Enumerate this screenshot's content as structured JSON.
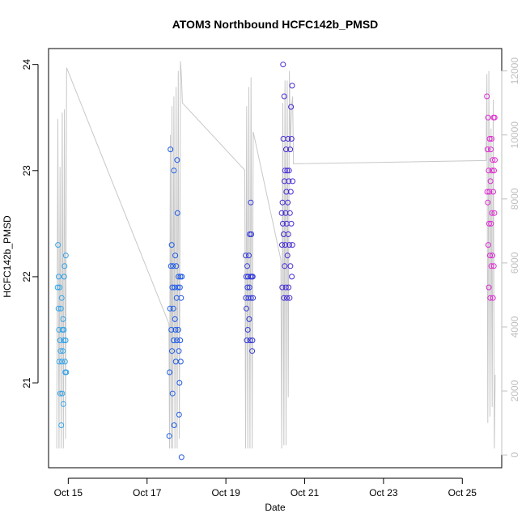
{
  "chart_data": {
    "type": "scatter",
    "title": "ATOM3 Northbound HCFC142b_PMSD",
    "xlabel": "Date",
    "ylabel": "HCFC142b_PMSD",
    "x_axis": {
      "range": [
        "2016-10-14T12:00",
        "2016-10-26T00:00"
      ],
      "ticks": [
        {
          "date": "2016-10-15",
          "label": "Oct 15"
        },
        {
          "date": "2016-10-17",
          "label": "Oct 17"
        },
        {
          "date": "2016-10-19",
          "label": "Oct 19"
        },
        {
          "date": "2016-10-21",
          "label": "Oct 21"
        },
        {
          "date": "2016-10-23",
          "label": "Oct 23"
        },
        {
          "date": "2016-10-25",
          "label": "Oct 25"
        }
      ]
    },
    "y_left": {
      "range": [
        20.2,
        24.15
      ],
      "ticks": [
        21,
        22,
        23,
        24
      ]
    },
    "y_right": {
      "range": [
        -400,
        12700
      ],
      "ticks": [
        0,
        2000,
        4000,
        6000,
        8000,
        10000,
        12000
      ],
      "color": "#bfbfbf"
    },
    "grid": false,
    "legend": "none",
    "colors": {
      "points_gradient": [
        "#33a6ea",
        "#1a5ee6",
        "#3b2ed4",
        "#9a1ad6",
        "#e02ad0"
      ],
      "altitude_line": "#c8c8c8"
    },
    "series": [
      {
        "role": "points",
        "points": [
          [
            "2016-10-14T17:30",
            21.9
          ],
          [
            "2016-10-14T17:45",
            22.3
          ],
          [
            "2016-10-14T18:00",
            21.7
          ],
          [
            "2016-10-14T18:10",
            22.0
          ],
          [
            "2016-10-14T18:20",
            21.5
          ],
          [
            "2016-10-14T18:30",
            21.2
          ],
          [
            "2016-10-14T18:45",
            21.9
          ],
          [
            "2016-10-14T19:00",
            21.4
          ],
          [
            "2016-10-14T19:10",
            20.9
          ],
          [
            "2016-10-14T19:20",
            21.3
          ],
          [
            "2016-10-14T19:30",
            21.7
          ],
          [
            "2016-10-14T19:45",
            20.6
          ],
          [
            "2016-10-14T20:00",
            21.8
          ],
          [
            "2016-10-14T20:10",
            21.2
          ],
          [
            "2016-10-14T20:20",
            20.9
          ],
          [
            "2016-10-14T20:30",
            21.5
          ],
          [
            "2016-10-14T20:40",
            21.3
          ],
          [
            "2016-10-14T20:50",
            21.6
          ],
          [
            "2016-10-14T21:00",
            20.8
          ],
          [
            "2016-10-14T21:10",
            21.4
          ],
          [
            "2016-10-14T21:20",
            21.5
          ],
          [
            "2016-10-14T21:30",
            22.0
          ],
          [
            "2016-10-14T21:45",
            22.1
          ],
          [
            "2016-10-14T22:00",
            21.2
          ],
          [
            "2016-10-14T22:10",
            21.1
          ],
          [
            "2016-10-14T22:20",
            21.4
          ],
          [
            "2016-10-14T22:30",
            22.2
          ],
          [
            "2016-10-14T22:45",
            21.1
          ],
          [
            "2016-10-17T13:30",
            20.5
          ],
          [
            "2016-10-17T13:45",
            21.1
          ],
          [
            "2016-10-17T14:00",
            21.7
          ],
          [
            "2016-10-17T14:15",
            23.2
          ],
          [
            "2016-10-17T14:30",
            22.1
          ],
          [
            "2016-10-17T14:45",
            21.5
          ],
          [
            "2016-10-17T15:00",
            22.3
          ],
          [
            "2016-10-17T15:10",
            21.3
          ],
          [
            "2016-10-17T15:20",
            21.9
          ],
          [
            "2016-10-17T15:30",
            20.9
          ],
          [
            "2016-10-17T15:45",
            22.1
          ],
          [
            "2016-10-17T16:00",
            21.7
          ],
          [
            "2016-10-17T16:10",
            21.4
          ],
          [
            "2016-10-17T16:20",
            23.0
          ],
          [
            "2016-10-17T16:30",
            20.6
          ],
          [
            "2016-10-17T16:45",
            21.9
          ],
          [
            "2016-10-17T17:00",
            21.6
          ],
          [
            "2016-10-17T17:10",
            22.2
          ],
          [
            "2016-10-17T17:20",
            21.5
          ],
          [
            "2016-10-17T17:30",
            21.2
          ],
          [
            "2016-10-17T17:45",
            22.1
          ],
          [
            "2016-10-17T18:00",
            21.8
          ],
          [
            "2016-10-17T18:10",
            21.4
          ],
          [
            "2016-10-17T18:20",
            23.1
          ],
          [
            "2016-10-17T18:30",
            22.6
          ],
          [
            "2016-10-17T18:45",
            21.9
          ],
          [
            "2016-10-17T19:00",
            21.5
          ],
          [
            "2016-10-17T19:10",
            22.0
          ],
          [
            "2016-10-17T19:20",
            21.3
          ],
          [
            "2016-10-17T19:30",
            20.7
          ],
          [
            "2016-10-17T19:45",
            21.0
          ],
          [
            "2016-10-17T20:00",
            21.9
          ],
          [
            "2016-10-17T20:10",
            21.4
          ],
          [
            "2016-10-17T20:20",
            22.0
          ],
          [
            "2016-10-17T20:30",
            21.2
          ],
          [
            "2016-10-17T20:45",
            21.8
          ],
          [
            "2016-10-17T21:00",
            20.3
          ],
          [
            "2016-10-17T21:10",
            22.0
          ],
          [
            "2016-10-19T12:00",
            22.2
          ],
          [
            "2016-10-19T12:10",
            21.8
          ],
          [
            "2016-10-19T12:20",
            22.0
          ],
          [
            "2016-10-19T12:30",
            21.7
          ],
          [
            "2016-10-19T12:45",
            21.4
          ],
          [
            "2016-10-19T13:00",
            22.1
          ],
          [
            "2016-10-19T13:10",
            21.9
          ],
          [
            "2016-10-19T13:20",
            21.5
          ],
          [
            "2016-10-19T13:30",
            22.0
          ],
          [
            "2016-10-19T13:45",
            21.8
          ],
          [
            "2016-10-19T14:00",
            22.2
          ],
          [
            "2016-10-19T14:10",
            21.6
          ],
          [
            "2016-10-19T14:20",
            21.9
          ],
          [
            "2016-10-19T14:30",
            22.4
          ],
          [
            "2016-10-19T14:45",
            21.4
          ],
          [
            "2016-10-19T15:00",
            22.0
          ],
          [
            "2016-10-19T15:10",
            22.7
          ],
          [
            "2016-10-19T15:20",
            21.8
          ],
          [
            "2016-10-19T15:30",
            22.4
          ],
          [
            "2016-10-19T15:45",
            22.0
          ],
          [
            "2016-10-19T16:00",
            21.3
          ],
          [
            "2016-10-19T16:10",
            21.4
          ],
          [
            "2016-10-19T16:20",
            22.0
          ],
          [
            "2016-10-19T16:30",
            21.8
          ],
          [
            "2016-10-20T10:00",
            22.6
          ],
          [
            "2016-10-20T10:10",
            22.3
          ],
          [
            "2016-10-20T10:20",
            21.9
          ],
          [
            "2016-10-20T10:30",
            22.7
          ],
          [
            "2016-10-20T10:40",
            22.5
          ],
          [
            "2016-10-20T10:50",
            24.0
          ],
          [
            "2016-10-20T11:00",
            23.3
          ],
          [
            "2016-10-20T11:10",
            22.4
          ],
          [
            "2016-10-20T11:20",
            21.8
          ],
          [
            "2016-10-20T11:30",
            23.7
          ],
          [
            "2016-10-20T11:40",
            22.9
          ],
          [
            "2016-10-20T11:50",
            22.1
          ],
          [
            "2016-10-20T12:00",
            23.0
          ],
          [
            "2016-10-20T12:10",
            22.3
          ],
          [
            "2016-10-20T12:20",
            22.6
          ],
          [
            "2016-10-20T12:30",
            21.9
          ],
          [
            "2016-10-20T12:40",
            23.2
          ],
          [
            "2016-10-20T12:50",
            22.8
          ],
          [
            "2016-10-20T13:00",
            22.5
          ],
          [
            "2016-10-20T13:10",
            21.8
          ],
          [
            "2016-10-20T13:20",
            23.0
          ],
          [
            "2016-10-20T13:30",
            22.2
          ],
          [
            "2016-10-20T13:40",
            22.7
          ],
          [
            "2016-10-20T13:50",
            23.3
          ],
          [
            "2016-10-20T14:00",
            22.4
          ],
          [
            "2016-10-20T14:10",
            21.9
          ],
          [
            "2016-10-20T14:20",
            22.9
          ],
          [
            "2016-10-20T14:30",
            23.0
          ],
          [
            "2016-10-20T14:40",
            22.3
          ],
          [
            "2016-10-20T14:50",
            21.8
          ],
          [
            "2016-10-20T15:00",
            22.6
          ],
          [
            "2016-10-20T15:10",
            23.2
          ],
          [
            "2016-10-20T15:20",
            22.1
          ],
          [
            "2016-10-20T15:30",
            22.8
          ],
          [
            "2016-10-20T15:40",
            23.6
          ],
          [
            "2016-10-20T15:50",
            22.5
          ],
          [
            "2016-10-20T16:00",
            23.3
          ],
          [
            "2016-10-20T16:10",
            22.0
          ],
          [
            "2016-10-20T16:20",
            23.8
          ],
          [
            "2016-10-20T16:30",
            22.3
          ],
          [
            "2016-10-20T16:40",
            22.9
          ],
          [
            "2016-10-25T15:00",
            23.7
          ],
          [
            "2016-10-25T15:10",
            22.8
          ],
          [
            "2016-10-25T15:20",
            23.2
          ],
          [
            "2016-10-25T15:30",
            22.7
          ],
          [
            "2016-10-25T15:40",
            23.5
          ],
          [
            "2016-10-25T15:50",
            22.3
          ],
          [
            "2016-10-25T16:00",
            23.0
          ],
          [
            "2016-10-25T16:10",
            21.9
          ],
          [
            "2016-10-25T16:20",
            22.5
          ],
          [
            "2016-10-25T16:30",
            22.8
          ],
          [
            "2016-10-25T16:40",
            23.3
          ],
          [
            "2016-10-25T16:50",
            22.2
          ],
          [
            "2016-10-25T17:00",
            21.8
          ],
          [
            "2016-10-25T17:10",
            22.9
          ],
          [
            "2016-10-25T17:20",
            23.2
          ],
          [
            "2016-10-25T17:30",
            22.5
          ],
          [
            "2016-10-25T17:40",
            22.1
          ],
          [
            "2016-10-25T17:50",
            23.3
          ],
          [
            "2016-10-25T18:00",
            22.6
          ],
          [
            "2016-10-25T18:10",
            23.0
          ],
          [
            "2016-10-25T18:20",
            22.2
          ],
          [
            "2016-10-25T18:30",
            23.1
          ],
          [
            "2016-10-25T18:40",
            21.8
          ],
          [
            "2016-10-25T18:50",
            22.8
          ],
          [
            "2016-10-25T19:00",
            23.5
          ],
          [
            "2016-10-25T19:10",
            22.1
          ],
          [
            "2016-10-25T19:20",
            23.0
          ],
          [
            "2016-10-25T19:30",
            22.6
          ],
          [
            "2016-10-25T19:40",
            23.5
          ],
          [
            "2016-10-25T19:50",
            23.1
          ]
        ]
      },
      {
        "role": "altitude",
        "axis": "right",
        "points": [
          [
            "2016-10-14T17:00",
            200
          ],
          [
            "2016-10-14T17:40",
            10500
          ],
          [
            "2016-10-14T18:20",
            200
          ],
          [
            "2016-10-14T19:00",
            9000
          ],
          [
            "2016-10-14T19:40",
            200
          ],
          [
            "2016-10-14T20:20",
            10700
          ],
          [
            "2016-10-14T21:00",
            200
          ],
          [
            "2016-10-14T21:40",
            10800
          ],
          [
            "2016-10-14T22:20",
            500
          ],
          [
            "2016-10-14T23:00",
            12100
          ],
          [
            "2016-10-17T13:20",
            4100
          ],
          [
            "2016-10-17T13:40",
            200
          ],
          [
            "2016-10-17T14:10",
            10000
          ],
          [
            "2016-10-17T14:40",
            200
          ],
          [
            "2016-10-17T15:10",
            10900
          ],
          [
            "2016-10-17T15:40",
            200
          ],
          [
            "2016-10-17T16:20",
            11200
          ],
          [
            "2016-10-17T17:00",
            200
          ],
          [
            "2016-10-17T17:40",
            11500
          ],
          [
            "2016-10-17T18:20",
            200
          ],
          [
            "2016-10-17T19:00",
            12000
          ],
          [
            "2016-10-17T19:40",
            500
          ],
          [
            "2016-10-17T20:20",
            12300
          ],
          [
            "2016-10-17T21:00",
            11800
          ],
          [
            "2016-10-17T21:30",
            11000
          ],
          [
            "2016-10-19T11:30",
            8900
          ],
          [
            "2016-10-19T12:00",
            200
          ],
          [
            "2016-10-19T12:40",
            10900
          ],
          [
            "2016-10-19T13:20",
            200
          ],
          [
            "2016-10-19T14:00",
            11500
          ],
          [
            "2016-10-19T14:40",
            200
          ],
          [
            "2016-10-19T15:20",
            11800
          ],
          [
            "2016-10-19T16:00",
            200
          ],
          [
            "2016-10-19T16:40",
            10100
          ],
          [
            "2016-10-20T09:30",
            6100
          ],
          [
            "2016-10-20T10:00",
            200
          ],
          [
            "2016-10-20T10:40",
            11000
          ],
          [
            "2016-10-20T11:20",
            300
          ],
          [
            "2016-10-20T12:00",
            11700
          ],
          [
            "2016-10-20T12:40",
            300
          ],
          [
            "2016-10-20T13:20",
            11700
          ],
          [
            "2016-10-20T14:00",
            1800
          ],
          [
            "2016-10-20T14:40",
            12000
          ],
          [
            "2016-10-20T15:20",
            9500
          ],
          [
            "2016-10-20T16:00",
            10900
          ],
          [
            "2016-10-20T16:40",
            11200
          ],
          [
            "2016-10-20T17:10",
            9100
          ],
          [
            "2016-10-25T14:30",
            9200
          ],
          [
            "2016-10-25T15:00",
            11900
          ],
          [
            "2016-10-25T15:30",
            1000
          ],
          [
            "2016-10-25T16:10",
            12000
          ],
          [
            "2016-10-25T16:50",
            1200
          ],
          [
            "2016-10-25T17:30",
            10200
          ],
          [
            "2016-10-25T18:10",
            1500
          ],
          [
            "2016-10-25T18:50",
            11100
          ],
          [
            "2016-10-25T19:30",
            200
          ],
          [
            "2016-10-25T20:00",
            2500
          ]
        ]
      }
    ]
  }
}
